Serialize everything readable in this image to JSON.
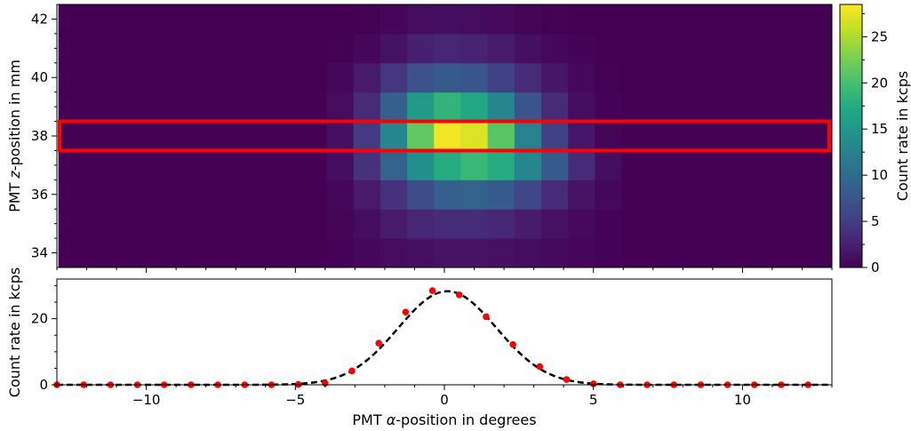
{
  "chart_data": [
    {
      "type": "heatmap",
      "ylabel_pre": "PMT ",
      "ylabel_var": "z",
      "ylabel_post": "-position in mm",
      "xlim": [
        -13,
        13
      ],
      "ylim": [
        33.5,
        42.5
      ],
      "yticks": [
        "34",
        "36",
        "38",
        "40",
        "42"
      ],
      "row_y": [
        34,
        35,
        36,
        37,
        38,
        39,
        40,
        41,
        42
      ],
      "col_x": [
        -12.5,
        -11.6,
        -10.7,
        -9.8,
        -8.9,
        -8.0,
        -7.1,
        -6.2,
        -5.3,
        -4.4,
        -3.5,
        -2.6,
        -1.7,
        -0.8,
        0.1,
        1.0,
        1.9,
        2.8,
        3.7,
        4.6,
        5.5,
        6.4,
        7.3,
        8.2,
        9.1,
        10.0,
        10.9,
        11.8,
        12.7
      ],
      "values": [
        [
          0,
          0,
          0,
          0,
          0,
          0,
          0,
          0,
          0,
          0,
          0.2,
          0.5,
          0.8,
          1.2,
          1.5,
          1.5,
          1.3,
          1.0,
          0.7,
          0.4,
          0.2,
          0,
          0,
          0,
          0,
          0,
          0,
          0,
          0
        ],
        [
          0,
          0,
          0,
          0,
          0,
          0,
          0,
          0,
          0,
          0,
          0.3,
          1.0,
          2.0,
          3.0,
          3.5,
          3.5,
          3.0,
          2.2,
          1.3,
          0.6,
          0.2,
          0,
          0,
          0,
          0,
          0,
          0,
          0,
          0
        ],
        [
          0,
          0,
          0,
          0,
          0,
          0,
          0,
          0,
          0,
          0,
          0.5,
          2.0,
          4.0,
          6.5,
          8.5,
          9.0,
          8.0,
          6.0,
          3.5,
          1.5,
          0.5,
          0,
          0,
          0,
          0,
          0,
          0,
          0,
          0
        ],
        [
          0,
          0,
          0,
          0,
          0,
          0,
          0,
          0,
          0,
          0,
          1.0,
          4.0,
          9.0,
          14.0,
          17.5,
          19.0,
          17.5,
          13.0,
          8.0,
          3.5,
          1.0,
          0,
          0,
          0,
          0,
          0,
          0,
          0,
          0
        ],
        [
          0,
          0,
          0,
          0,
          0,
          0,
          0,
          0,
          0,
          0,
          1.2,
          5.0,
          13.0,
          21.5,
          28.0,
          27.0,
          21.0,
          12.5,
          5.5,
          1.7,
          0.3,
          0,
          0,
          0,
          0,
          0,
          0,
          0,
          0
        ],
        [
          0,
          0,
          0,
          0,
          0,
          0,
          0,
          0,
          0,
          0,
          0.9,
          3.5,
          8.5,
          15.5,
          18.5,
          17.0,
          13.0,
          7.5,
          3.5,
          1.0,
          0.2,
          0,
          0,
          0,
          0,
          0,
          0,
          0,
          0
        ],
        [
          0,
          0,
          0,
          0,
          0,
          0,
          0,
          0,
          0,
          0,
          0.5,
          2.0,
          4.5,
          7.0,
          8.0,
          7.5,
          5.5,
          3.5,
          1.7,
          0.5,
          0.1,
          0,
          0,
          0,
          0,
          0,
          0,
          0,
          0
        ],
        [
          0,
          0,
          0,
          0,
          0,
          0,
          0,
          0,
          0,
          0,
          0.1,
          0.5,
          1.4,
          2.5,
          3.0,
          2.8,
          2.0,
          1.2,
          0.5,
          0.2,
          0,
          0,
          0,
          0,
          0,
          0,
          0,
          0,
          0
        ],
        [
          0,
          0,
          0,
          0,
          0,
          0,
          0,
          0,
          0,
          0,
          0,
          0.1,
          0.4,
          0.8,
          1.0,
          0.9,
          0.6,
          0.3,
          0.1,
          0,
          0,
          0,
          0,
          0,
          0,
          0,
          0,
          0,
          0
        ]
      ],
      "highlight_row": {
        "y_range": [
          37.5,
          38.5
        ],
        "color": "#ff0000"
      },
      "colorbar": {
        "label": "Count rate in kcps",
        "range": [
          0,
          28.5
        ],
        "ticks": [
          "0",
          "5",
          "10",
          "15",
          "20",
          "25"
        ],
        "colormap": "viridis"
      }
    },
    {
      "type": "scatter",
      "ylabel": "Count rate in kcps",
      "xlabel_pre": "PMT ",
      "xlabel_var": "α",
      "xlabel_post": "-position in degrees",
      "xlim": [
        -13,
        13
      ],
      "ylim": [
        0,
        32
      ],
      "xticks": [
        "−10",
        "−5",
        "0",
        "5",
        "10"
      ],
      "yticks": [
        "0",
        "20"
      ],
      "points_color": "#ff0000",
      "points": [
        [
          -13.0,
          0
        ],
        [
          -12.1,
          0
        ],
        [
          -11.2,
          0
        ],
        [
          -10.3,
          0
        ],
        [
          -9.4,
          0
        ],
        [
          -8.5,
          0
        ],
        [
          -7.6,
          0
        ],
        [
          -6.7,
          0
        ],
        [
          -5.8,
          0
        ],
        [
          -4.9,
          0.1
        ],
        [
          -4.0,
          0.5
        ],
        [
          -3.1,
          4.2
        ],
        [
          -2.2,
          12.6
        ],
        [
          -1.3,
          22.0
        ],
        [
          -0.4,
          28.5
        ],
        [
          0.5,
          27.2
        ],
        [
          1.4,
          20.6
        ],
        [
          2.3,
          12.2
        ],
        [
          3.2,
          5.5
        ],
        [
          4.1,
          1.6
        ],
        [
          5.0,
          0.3
        ],
        [
          5.9,
          0
        ],
        [
          6.8,
          0
        ],
        [
          7.7,
          0
        ],
        [
          8.6,
          0
        ],
        [
          9.5,
          0
        ],
        [
          10.4,
          0
        ],
        [
          11.3,
          0
        ],
        [
          12.2,
          0
        ]
      ],
      "fit": {
        "style": "dashed",
        "color": "#000000",
        "amplitude": 28.3,
        "center": 0.1,
        "sigma": 1.65
      }
    }
  ]
}
